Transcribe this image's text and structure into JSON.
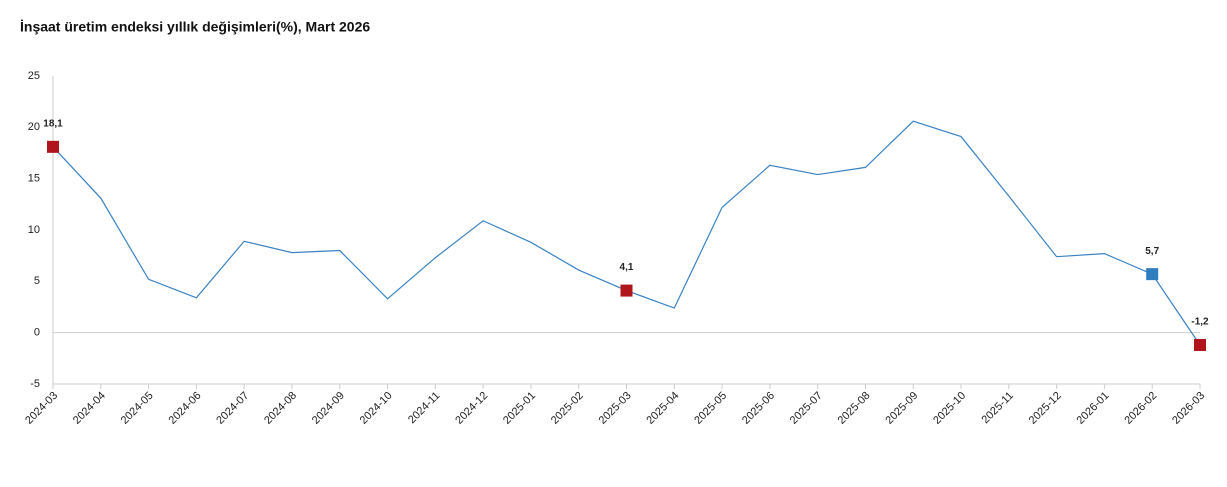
{
  "chart_data": {
    "type": "line",
    "title": "İnşaat üretim endeksi yıllık değişimleri(%), Mart 2026",
    "categories": [
      "2024-03",
      "2024-04",
      "2024-05",
      "2024-06",
      "2024-07",
      "2024-08",
      "2024-09",
      "2024-10",
      "2024-11",
      "2024-12",
      "2025-01",
      "2025-02",
      "2025-03",
      "2025-04",
      "2025-05",
      "2025-06",
      "2025-07",
      "2025-08",
      "2025-09",
      "2025-10",
      "2025-11",
      "2025-12",
      "2026-01",
      "2026-02",
      "2026-03"
    ],
    "values": [
      18.1,
      13.1,
      5.2,
      3.4,
      8.9,
      7.8,
      8.0,
      3.3,
      7.3,
      10.9,
      8.8,
      6.1,
      4.1,
      2.4,
      12.2,
      16.3,
      15.4,
      16.1,
      20.6,
      19.1,
      13.3,
      7.4,
      7.7,
      5.7,
      -1.2
    ],
    "value_labels": [
      "18,1",
      null,
      null,
      null,
      null,
      null,
      null,
      null,
      null,
      null,
      null,
      null,
      "4,1",
      null,
      null,
      null,
      null,
      null,
      null,
      null,
      null,
      null,
      null,
      "5,7",
      "-1,2"
    ],
    "marker_colors": [
      "#b0151e",
      null,
      null,
      null,
      null,
      null,
      null,
      null,
      null,
      null,
      null,
      null,
      "#b0151e",
      null,
      null,
      null,
      null,
      null,
      null,
      null,
      null,
      null,
      null,
      "#2f7dbf",
      "#b0151e"
    ],
    "color": "#3a82c4",
    "ylim": [
      -5,
      25
    ],
    "yticks": [
      -5,
      0,
      5,
      10,
      15,
      20,
      25
    ]
  }
}
